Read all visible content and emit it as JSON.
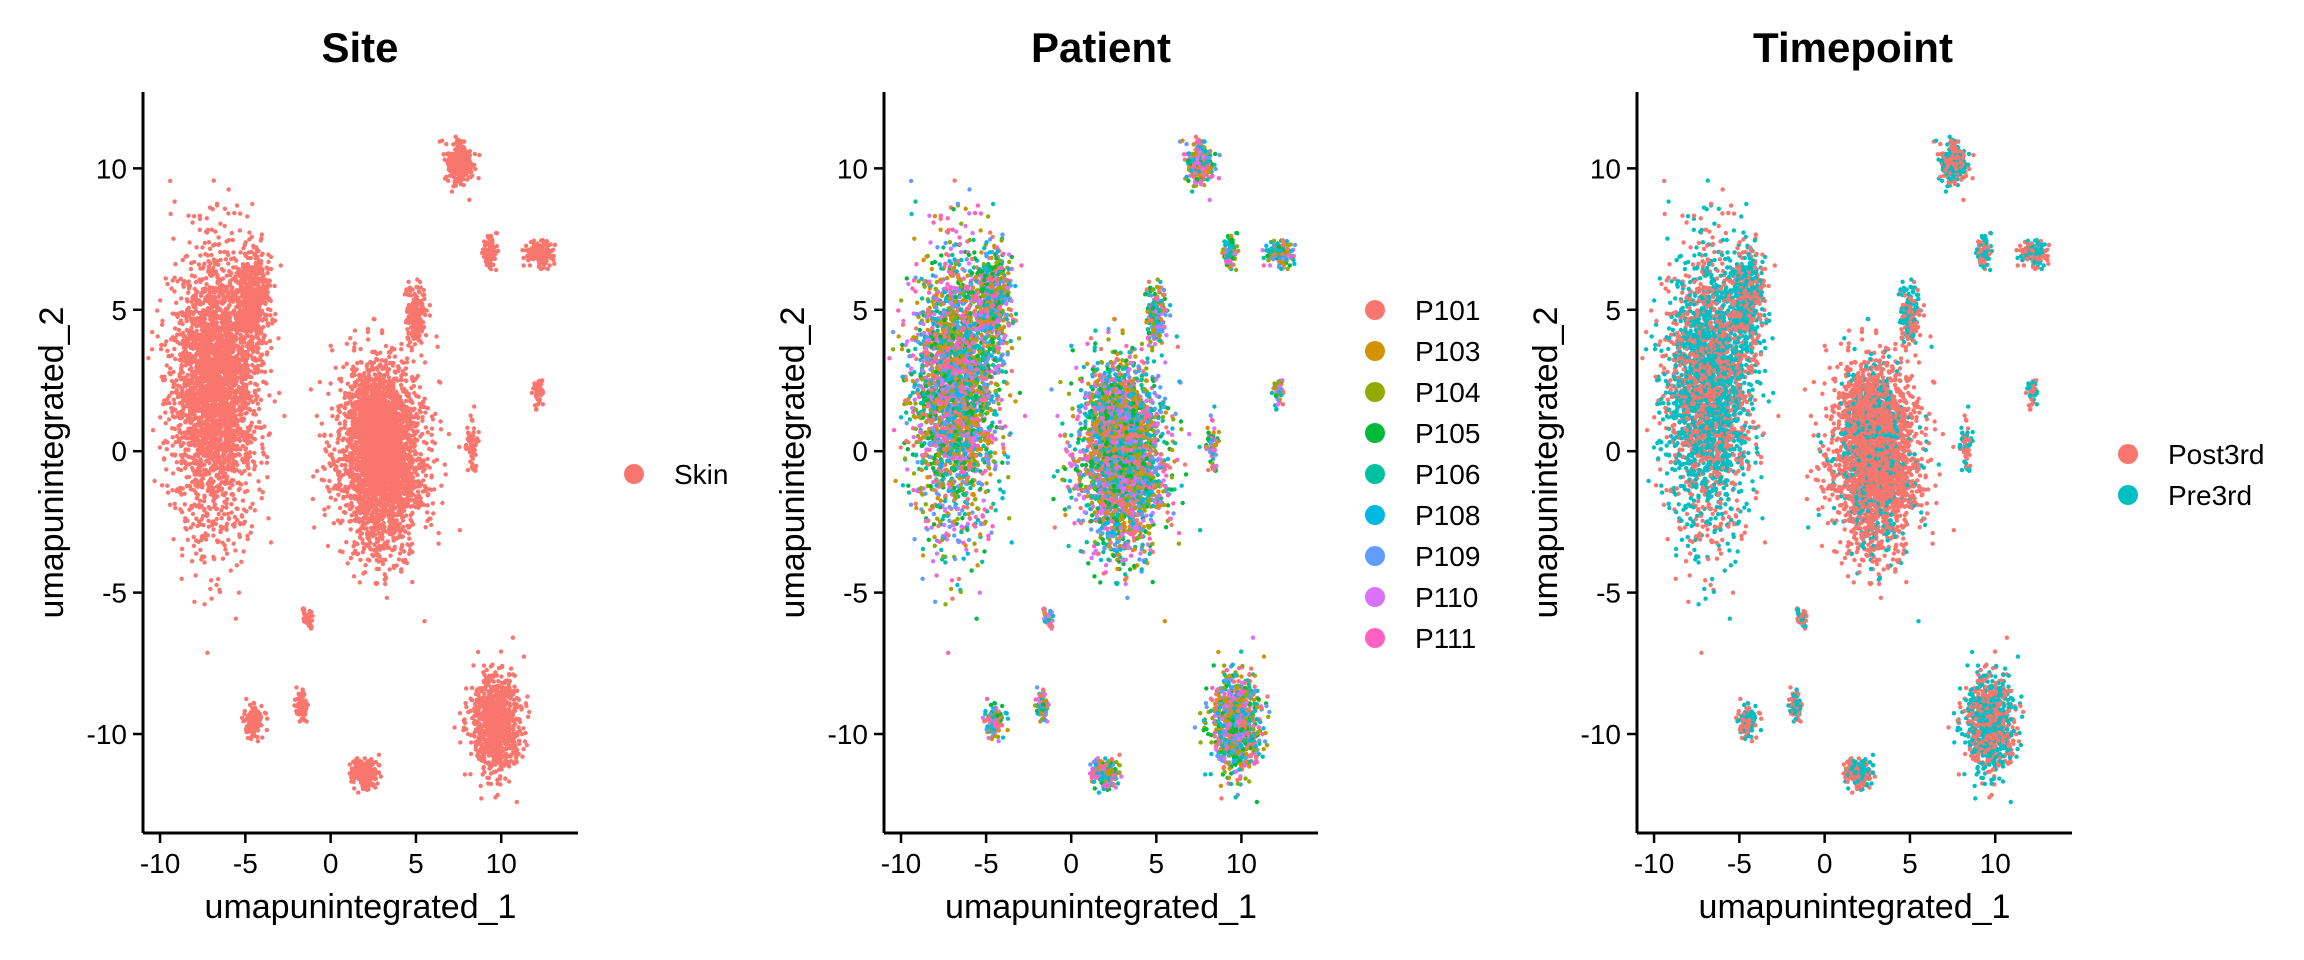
{
  "chart_data": [
    {
      "type": "scatter",
      "title": "Site",
      "xlabel": "umapunintegrated_1",
      "ylabel": "umapunintegrated_2",
      "xlim": [
        -11,
        14.5
      ],
      "ylim": [
        -13.5,
        12.7
      ],
      "xticks": [
        -10,
        -5,
        0,
        5,
        10
      ],
      "yticks": [
        -10,
        -5,
        0,
        5,
        10
      ],
      "xtick_labels": [
        "-10",
        "-5",
        "0",
        "5",
        "10"
      ],
      "ytick_labels": [
        "-10",
        "-5",
        "0",
        "5",
        "10"
      ],
      "grid": false,
      "legend_position": "right",
      "series": [
        {
          "name": "Skin",
          "color": "#F8766D"
        }
      ]
    },
    {
      "type": "scatter",
      "title": "Patient",
      "xlabel": "umapunintegrated_1",
      "ylabel": "umapunintegrated_2",
      "xlim": [
        -11,
        14.5
      ],
      "ylim": [
        -13.5,
        12.7
      ],
      "xticks": [
        -10,
        -5,
        0,
        5,
        10
      ],
      "yticks": [
        -10,
        -5,
        0,
        5,
        10
      ],
      "xtick_labels": [
        "-10",
        "-5",
        "0",
        "5",
        "10"
      ],
      "ytick_labels": [
        "-10",
        "-5",
        "0",
        "5",
        "10"
      ],
      "grid": false,
      "legend_position": "right",
      "series": [
        {
          "name": "P101",
          "color": "#F8766D"
        },
        {
          "name": "P103",
          "color": "#D39200"
        },
        {
          "name": "P104",
          "color": "#93AA00"
        },
        {
          "name": "P105",
          "color": "#00BA38"
        },
        {
          "name": "P106",
          "color": "#00C19F"
        },
        {
          "name": "P108",
          "color": "#00B9E3"
        },
        {
          "name": "P109",
          "color": "#619CFF"
        },
        {
          "name": "P110",
          "color": "#DB72FB"
        },
        {
          "name": "P111",
          "color": "#FF61C3"
        }
      ]
    },
    {
      "type": "scatter",
      "title": "Timepoint",
      "xlabel": "umapunintegrated_1",
      "ylabel": "umapunintegrated_2",
      "xlim": [
        -11,
        14.5
      ],
      "ylim": [
        -13.5,
        12.7
      ],
      "xticks": [
        -10,
        -5,
        0,
        5,
        10
      ],
      "yticks": [
        -10,
        -5,
        0,
        5,
        10
      ],
      "xtick_labels": [
        "-10",
        "-5",
        "0",
        "5",
        "10"
      ],
      "ytick_labels": [
        "-10",
        "-5",
        "0",
        "5",
        "10"
      ],
      "grid": false,
      "legend_position": "right",
      "series": [
        {
          "name": "Post3rd",
          "color": "#F8766D"
        },
        {
          "name": "Pre3rd",
          "color": "#00BFC4"
        }
      ]
    }
  ],
  "clusters": [
    {
      "cx": -6.8,
      "cy": 2.2,
      "sx": 2.2,
      "sy": 4.2,
      "w": 0.27
    },
    {
      "cx": -4.6,
      "cy": 5.3,
      "sx": 0.9,
      "sy": 1.6,
      "w": 0.05
    },
    {
      "cx": 3.0,
      "cy": -0.2,
      "sx": 2.2,
      "sy": 2.9,
      "w": 0.26
    },
    {
      "cx": 2.6,
      "cy": 1.2,
      "sx": 1.2,
      "sy": 1.2,
      "w": 0.05
    },
    {
      "cx": 5.0,
      "cy": 4.8,
      "sx": 0.5,
      "sy": 0.9,
      "w": 0.02
    },
    {
      "cx": 7.5,
      "cy": 10.2,
      "sx": 0.7,
      "sy": 0.7,
      "w": 0.02
    },
    {
      "cx": 9.3,
      "cy": 7.0,
      "sx": 0.4,
      "sy": 0.5,
      "w": 0.008
    },
    {
      "cx": 12.3,
      "cy": 7.0,
      "sx": 0.7,
      "sy": 0.4,
      "w": 0.014
    },
    {
      "cx": 12.2,
      "cy": 2.0,
      "sx": 0.3,
      "sy": 0.5,
      "w": 0.004
    },
    {
      "cx": 9.7,
      "cy": -9.6,
      "sx": 1.3,
      "sy": 1.6,
      "w": 0.085
    },
    {
      "cx": 2.0,
      "cy": -11.4,
      "sx": 0.8,
      "sy": 0.5,
      "w": 0.018
    },
    {
      "cx": -4.5,
      "cy": -9.6,
      "sx": 0.5,
      "sy": 0.6,
      "w": 0.012
    },
    {
      "cx": -1.7,
      "cy": -9.0,
      "sx": 0.3,
      "sy": 0.5,
      "w": 0.006
    },
    {
      "cx": -1.3,
      "cy": -5.9,
      "sx": 0.3,
      "sy": 0.3,
      "w": 0.003
    },
    {
      "cx": 8.3,
      "cy": 0.2,
      "sx": 0.3,
      "sy": 1.0,
      "w": 0.006
    }
  ],
  "points_per_panel": 9000
}
